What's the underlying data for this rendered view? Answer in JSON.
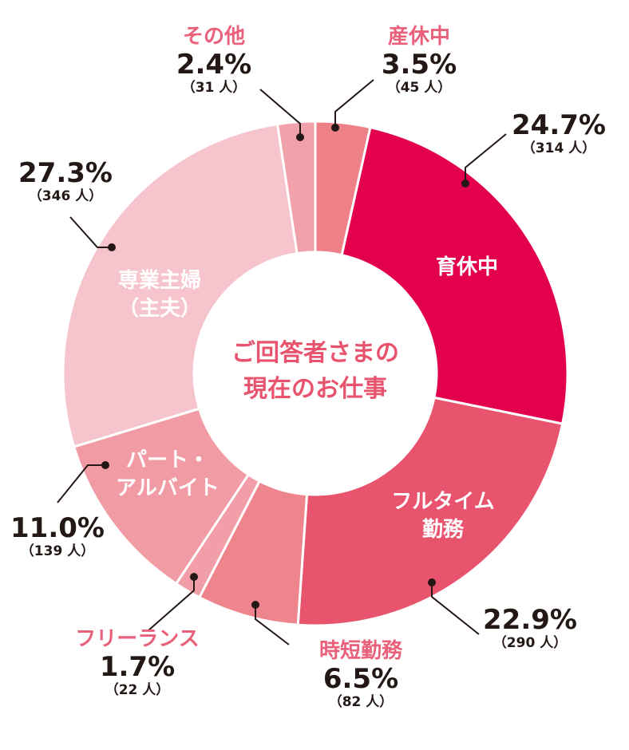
{
  "chart_data": {
    "type": "pie",
    "donut": true,
    "title": "ご回答者さまの\n現在のお仕事",
    "start": "top, clockwise",
    "slices": [
      {
        "name": "産休中",
        "percent": 3.5,
        "count": "（45 人）",
        "color": "#ee8088",
        "inside": false
      },
      {
        "name": "育休中",
        "percent": 24.7,
        "count": "（314 人）",
        "color": "#e2004f",
        "inside": true
      },
      {
        "name": "フルタイム\n勤務",
        "percent": 22.9,
        "count": "（290 人）",
        "color": "#e8546e",
        "inside": true
      },
      {
        "name": "時短勤務",
        "percent": 6.5,
        "count": "（82 人）",
        "color": "#ee848c",
        "inside": false
      },
      {
        "name": "フリーランス",
        "percent": 1.7,
        "count": "（22 人）",
        "color": "#f29ea8",
        "inside": false
      },
      {
        "name": "パート・\nアルバイト",
        "percent": 11.0,
        "count": "（139 人）",
        "color": "#f19ca5",
        "inside": true
      },
      {
        "name": "専業主婦\n（主夫）",
        "percent": 27.3,
        "count": "（346 人）",
        "color": "#f6c4cd",
        "inside": true
      },
      {
        "name": "その他",
        "percent": 2.4,
        "count": "（31 人）",
        "color": "#f0a1aa",
        "inside": false
      }
    ],
    "labels_pct": [
      "3.5%",
      "24.7%",
      "22.9%",
      "6.5%",
      "1.7%",
      "11.0%",
      "27.3%",
      "2.4%"
    ]
  }
}
